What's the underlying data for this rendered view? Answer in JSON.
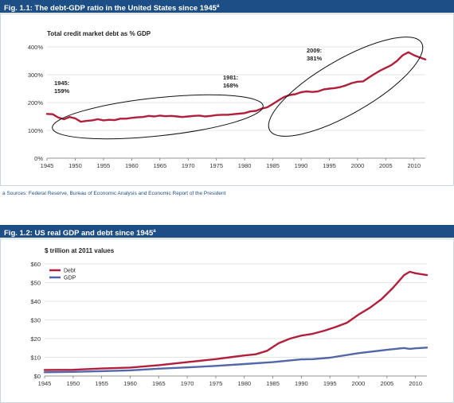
{
  "figure1": {
    "title": "Fig. 1.1: The debt-GDP ratio in the United States since 1945",
    "title_mark": "a",
    "note": "a Sources: Federal Reserve, Bureau of Economic Analysis and Economic Report of the President"
  },
  "figure2": {
    "title": "Fig. 1.2: US real GDP and debt since 1945",
    "title_mark": "a"
  },
  "colors": {
    "header": "#1d4f86",
    "debt": "#b01f3c",
    "gdp": "#5267a9"
  },
  "chart_data": [
    {
      "type": "line",
      "ylabel": "Total credit market debt as % GDP",
      "ylim": [
        0,
        400
      ],
      "yticks": [
        0,
        100,
        200,
        300,
        400
      ],
      "ytick_labels": [
        "0%",
        "100%",
        "200%",
        "300%",
        "400%"
      ],
      "xlim": [
        1945,
        2012
      ],
      "xticks": [
        1945,
        1950,
        1955,
        1960,
        1965,
        1970,
        1975,
        1980,
        1985,
        1990,
        1995,
        2000,
        2005,
        2010
      ],
      "grid": true,
      "series": [
        {
          "x": [
            1945,
            1946,
            1947,
            1948,
            1949,
            1950,
            1951,
            1952,
            1953,
            1954,
            1955,
            1956,
            1957,
            1958,
            1959,
            1960,
            1961,
            1962,
            1963,
            1964,
            1965,
            1966,
            1967,
            1968,
            1969,
            1970,
            1971,
            1972,
            1973,
            1974,
            1975,
            1976,
            1977,
            1978,
            1979,
            1980,
            1981,
            1982,
            1983,
            1984,
            1985,
            1986,
            1987,
            1988,
            1989,
            1990,
            1991,
            1992,
            1993,
            1994,
            1995,
            1996,
            1997,
            1998,
            1999,
            2000,
            2001,
            2002,
            2003,
            2004,
            2005,
            2006,
            2007,
            2008,
            2009,
            2010,
            2011,
            2012
          ],
          "values": [
            159,
            158,
            146,
            140,
            148,
            143,
            131,
            134,
            136,
            140,
            136,
            138,
            137,
            142,
            142,
            145,
            147,
            148,
            152,
            150,
            153,
            151,
            152,
            150,
            148,
            150,
            152,
            153,
            150,
            152,
            155,
            156,
            156,
            158,
            160,
            162,
            168,
            170,
            178,
            183,
            195,
            208,
            220,
            227,
            230,
            237,
            240,
            238,
            240,
            247,
            250,
            252,
            256,
            262,
            270,
            275,
            276,
            290,
            303,
            315,
            325,
            335,
            350,
            370,
            381,
            370,
            362,
            355
          ]
        }
      ],
      "annotations": [
        {
          "line1": "1945:",
          "line2": "159%"
        },
        {
          "line1": "1981:",
          "line2": "168%"
        },
        {
          "line1": "2009:",
          "line2": "381%"
        }
      ]
    },
    {
      "type": "line",
      "ylabel": "$ trillion at 2011 values",
      "ylim": [
        0,
        60
      ],
      "yticks": [
        0,
        10,
        20,
        30,
        40,
        50,
        60
      ],
      "ytick_labels": [
        "$0",
        "$10",
        "$20",
        "$30",
        "$40",
        "$50",
        "$60"
      ],
      "xlim": [
        1945,
        2012
      ],
      "xticks": [
        1945,
        1950,
        1955,
        1960,
        1965,
        1970,
        1975,
        1980,
        1985,
        1990,
        1995,
        2000,
        2005,
        2010
      ],
      "grid": true,
      "legend": "top-left",
      "series": [
        {
          "name": "Debt",
          "x": [
            1945,
            1950,
            1955,
            1960,
            1965,
            1970,
            1975,
            1978,
            1980,
            1982,
            1984,
            1986,
            1988,
            1990,
            1992,
            1994,
            1996,
            1998,
            2000,
            2002,
            2004,
            2006,
            2007,
            2008,
            2009,
            2010,
            2011,
            2012
          ],
          "values": [
            3.2,
            3.3,
            4.0,
            4.5,
            5.8,
            7.4,
            9.0,
            10.2,
            11.0,
            11.6,
            13.5,
            17.5,
            20.0,
            21.6,
            22.6,
            24.2,
            26.2,
            28.5,
            32.8,
            36.5,
            41.0,
            47.0,
            50.5,
            54.0,
            55.8,
            55.0,
            54.5,
            54.0
          ]
        },
        {
          "name": "GDP",
          "x": [
            1945,
            1950,
            1955,
            1960,
            1965,
            1970,
            1975,
            1980,
            1985,
            1990,
            1992,
            1995,
            2000,
            2005,
            2008,
            2009,
            2010,
            2012
          ],
          "values": [
            2.0,
            2.2,
            2.6,
            3.0,
            3.9,
            4.6,
            5.4,
            6.4,
            7.4,
            8.9,
            9.0,
            9.8,
            12.2,
            14.0,
            15.0,
            14.5,
            14.8,
            15.2
          ]
        }
      ]
    }
  ]
}
